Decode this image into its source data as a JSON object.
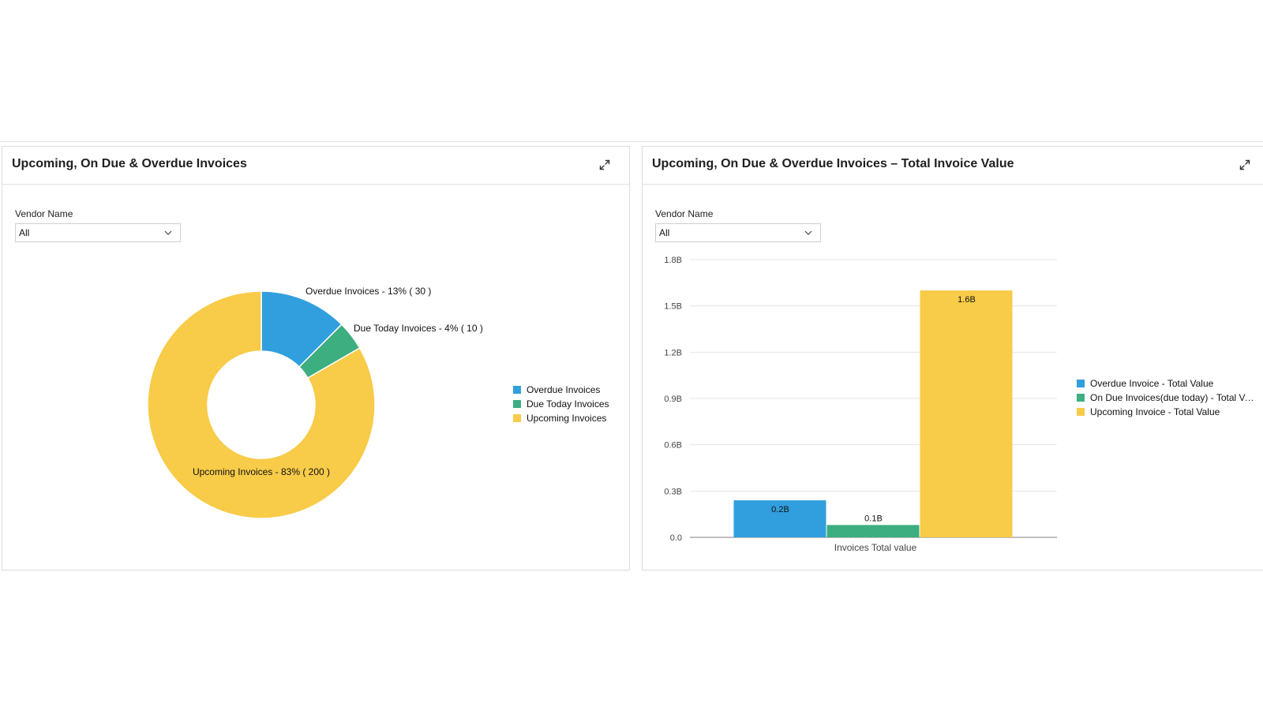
{
  "colors": {
    "overdue": "#319fde",
    "due_today": "#3cae80",
    "upcoming": "#f8cb48",
    "grid": "#e6e6e6",
    "axis": "#999999"
  },
  "left_panel": {
    "title": "Upcoming, On Due & Overdue Invoices",
    "expand_icon": "expand-icon",
    "filter": {
      "label": "Vendor Name",
      "value": "All",
      "icon": "chevron-down-icon"
    },
    "slice_labels": [
      "Overdue Invoices - 13% ( 30 )",
      "Due Today Invoices - 4% ( 10 )",
      "Upcoming Invoices - 83% ( 200 )"
    ],
    "legend": [
      "Overdue Invoices",
      "Due Today Invoices",
      "Upcoming Invoices"
    ]
  },
  "right_panel": {
    "title": "Upcoming, On Due & Overdue Invoices – Total Invoice Value",
    "expand_icon": "expand-icon",
    "filter": {
      "label": "Vendor Name",
      "value": "All",
      "icon": "chevron-down-icon"
    },
    "legend": [
      "Overdue Invoice - Total Value",
      "On Due Invoices(due today) - Total Value",
      "Upcoming Invoice - Total Value"
    ]
  },
  "chart_data": [
    {
      "type": "pie",
      "donut": true,
      "categories": [
        "Overdue Invoices",
        "Due Today Invoices",
        "Upcoming Invoices"
      ],
      "values": [
        30,
        10,
        200
      ],
      "percent_labels": [
        "13%",
        "4%",
        "83%"
      ],
      "legend_position": "right"
    },
    {
      "type": "bar",
      "categories": [
        "Invoices Total value"
      ],
      "series": [
        {
          "name": "Overdue Invoice - Total Value",
          "values": [
            0.24
          ],
          "label": "0.2B"
        },
        {
          "name": "On Due Invoices(due today) - Total Value",
          "values": [
            0.08
          ],
          "label": "0.1B"
        },
        {
          "name": "Upcoming Invoice - Total Value",
          "values": [
            1.6
          ],
          "label": "1.6B"
        }
      ],
      "xlabel": "Invoices Total value",
      "ylabel": "",
      "ylim": [
        0,
        1.8
      ],
      "yticks": [
        "0.0",
        "0.3B",
        "0.6B",
        "0.9B",
        "1.2B",
        "1.5B",
        "1.8B"
      ],
      "ytick_values": [
        0,
        0.3,
        0.6,
        0.9,
        1.2,
        1.5,
        1.8
      ],
      "grid": true,
      "legend_position": "right"
    }
  ]
}
